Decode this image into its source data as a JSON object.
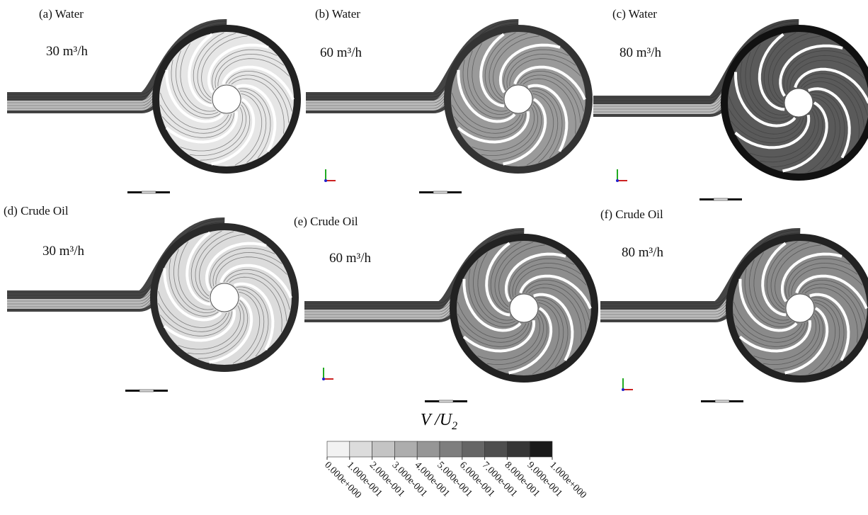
{
  "panels": [
    {
      "label": "(a) Water",
      "flow": "30 m³/h"
    },
    {
      "label": "(b) Water",
      "flow": "60 m³/h"
    },
    {
      "label": "(c) Water",
      "flow": "80 m³/h"
    },
    {
      "label": "(d) Crude Oil",
      "flow": "30 m³/h"
    },
    {
      "label": "(e) Crude Oil",
      "flow": "60 m³/h"
    },
    {
      "label": "(f) Crude Oil",
      "flow": "80 m³/h"
    }
  ],
  "colorbar": {
    "title": "V /U",
    "title_subscript": "2",
    "colors": [
      "#f2f2f2",
      "#dcdcdc",
      "#c4c4c4",
      "#adadad",
      "#969696",
      "#7e7e7e",
      "#666666",
      "#4e4e4e",
      "#363636",
      "#1a1a1a"
    ],
    "labels": [
      "0.000e+000",
      "1.000e-001",
      "2.000e-001",
      "3.000e-001",
      "4.000e-001",
      "5.000e-001",
      "6.000e-001",
      "7.000e-001",
      "8.000e-001",
      "9.000e-001",
      "1.000e+000"
    ]
  }
}
